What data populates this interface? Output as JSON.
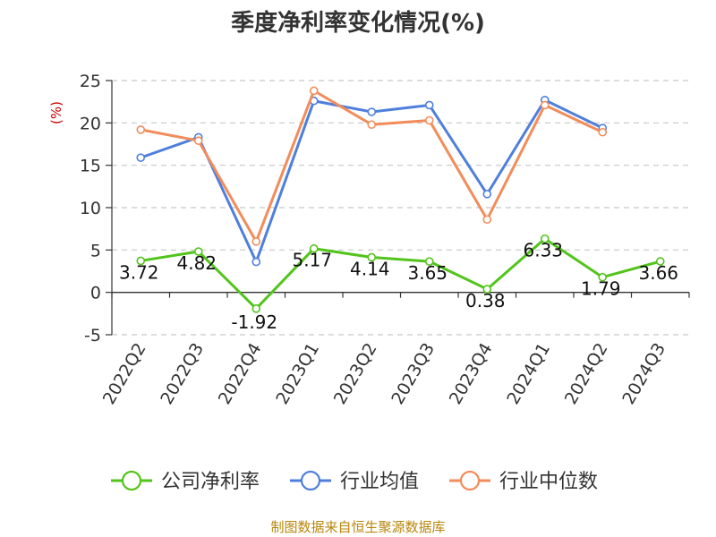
{
  "chart_data": {
    "type": "line",
    "title": "季度净利率变化情况(%)",
    "unit_label": "(%)",
    "categories": [
      "2022Q2",
      "2022Q3",
      "2022Q4",
      "2023Q1",
      "2023Q2",
      "2023Q3",
      "2023Q4",
      "2024Q1",
      "2024Q2",
      "2024Q3"
    ],
    "ylim": [
      -5,
      25
    ],
    "yticks": [
      -5,
      0,
      5,
      10,
      15,
      20,
      25
    ],
    "grid": true,
    "legend_position": "bottom",
    "series": [
      {
        "name": "公司净利率",
        "color": "#52c41a",
        "values": [
          3.72,
          4.82,
          -1.92,
          5.17,
          4.14,
          3.65,
          0.38,
          6.33,
          1.79,
          3.66
        ],
        "labels": [
          "3.72",
          "4.82",
          "-1.92",
          "5.17",
          "4.14",
          "3.65",
          "0.38",
          "6.33",
          "1.79",
          "3.66"
        ]
      },
      {
        "name": "行业均值",
        "color": "#4f7fdc",
        "values": [
          15.9,
          18.3,
          3.6,
          22.6,
          21.3,
          22.1,
          11.6,
          22.7,
          19.4,
          null
        ]
      },
      {
        "name": "行业中位数",
        "color": "#f28c5a",
        "values": [
          19.2,
          17.9,
          6.0,
          23.8,
          19.8,
          20.3,
          8.6,
          22.1,
          18.9,
          null
        ]
      }
    ],
    "source": "制图数据来自恒生聚源数据库"
  }
}
